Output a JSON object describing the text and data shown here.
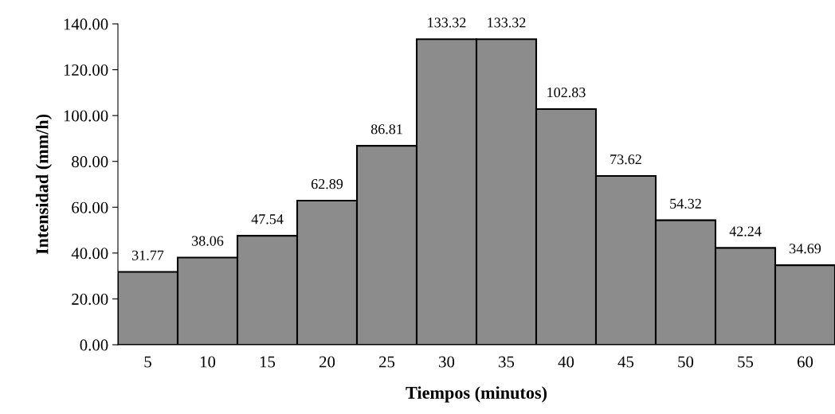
{
  "chart_data": {
    "type": "bar",
    "xlabel": "Tiempos (minutos)",
    "ylabel": "Intensidad (mm/h)",
    "categories": [
      "5",
      "10",
      "15",
      "20",
      "25",
      "30",
      "35",
      "40",
      "45",
      "50",
      "55",
      "60"
    ],
    "values": [
      31.77,
      38.06,
      47.54,
      62.89,
      86.81,
      133.32,
      133.32,
      102.83,
      73.62,
      54.32,
      42.24,
      34.69
    ],
    "color": "#8c8c8c",
    "ylim": [
      0,
      140
    ],
    "yticks": [
      {
        "value": 0,
        "label": "0.00"
      },
      {
        "value": 20,
        "label": "20.00"
      },
      {
        "value": 40,
        "label": "40.00"
      },
      {
        "value": 60,
        "label": "60.00"
      },
      {
        "value": 80,
        "label": "80.00"
      },
      {
        "value": 100,
        "label": "100.00"
      },
      {
        "value": 120,
        "label": "120.00"
      },
      {
        "value": 140,
        "label": "140.00"
      }
    ],
    "data_labels": true,
    "grid": false,
    "legend": false
  }
}
